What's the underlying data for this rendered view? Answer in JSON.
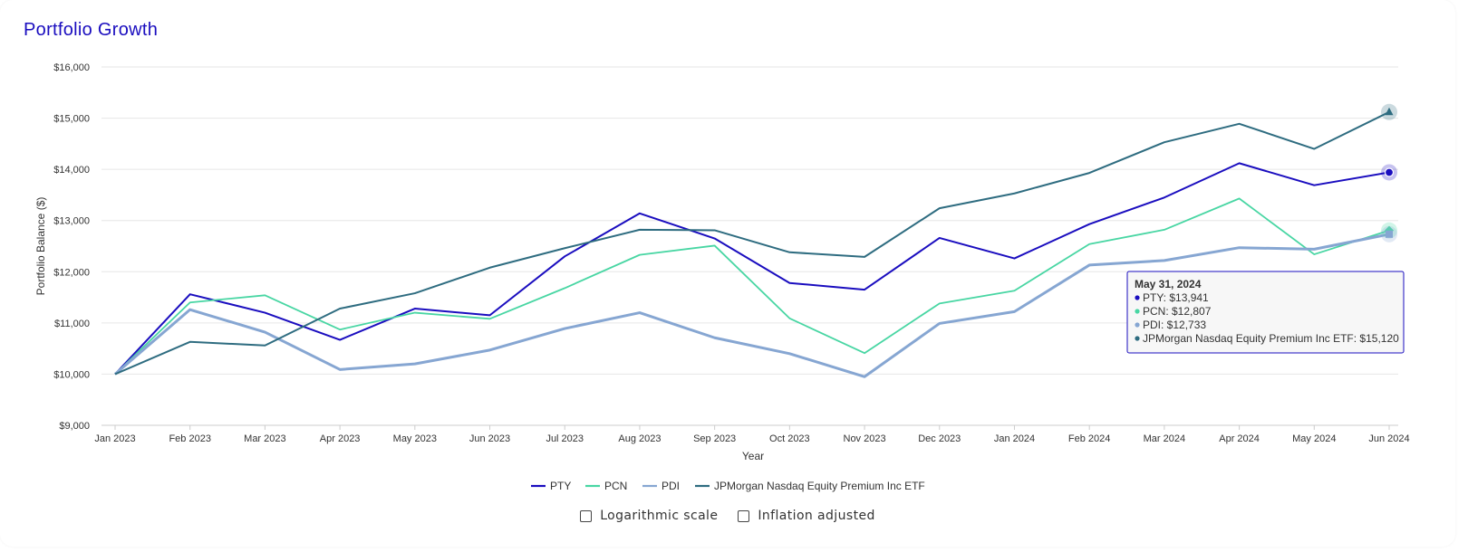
{
  "title": "Portfolio Growth",
  "options": {
    "log_label": "Logarithmic scale",
    "inflation_label": "Inflation adjusted"
  },
  "chart_data": {
    "type": "line",
    "title": "Portfolio Growth",
    "xlabel": "Year",
    "ylabel": "Portfolio Balance ($)",
    "ylim": [
      9000,
      16000
    ],
    "yticks": [
      9000,
      10000,
      11000,
      12000,
      13000,
      14000,
      15000,
      16000
    ],
    "ytick_labels": [
      "$9,000",
      "$10,000",
      "$11,000",
      "$12,000",
      "$13,000",
      "$14,000",
      "$15,000",
      "$16,000"
    ],
    "grid": true,
    "legend_position": "bottom",
    "categories": [
      "Jan 2023",
      "Feb 2023",
      "Mar 2023",
      "Apr 2023",
      "May 2023",
      "Jun 2023",
      "Jul 2023",
      "Aug 2023",
      "Sep 2023",
      "Oct 2023",
      "Nov 2023",
      "Dec 2023",
      "Jan 2024",
      "Feb 2024",
      "Mar 2024",
      "Apr 2024",
      "May 2024",
      "Jun 2024"
    ],
    "series": [
      {
        "name": "PTY",
        "color": "#1a0dbf",
        "values": [
          10000,
          11560,
          11200,
          10670,
          11280,
          11150,
          12300,
          13140,
          12650,
          11780,
          11650,
          12660,
          12260,
          12930,
          13450,
          14120,
          13690,
          13941
        ]
      },
      {
        "name": "PCN",
        "color": "#48d6a3",
        "values": [
          10000,
          11400,
          11540,
          10870,
          11200,
          11080,
          11680,
          12330,
          12510,
          11090,
          10410,
          11380,
          11630,
          12540,
          12820,
          13430,
          12340,
          12807
        ]
      },
      {
        "name": "PDI",
        "color": "#86a6d2",
        "values": [
          10000,
          11260,
          10820,
          10090,
          10200,
          10470,
          10890,
          11200,
          10710,
          10400,
          9950,
          10990,
          11220,
          12130,
          12220,
          12470,
          12440,
          12733
        ]
      },
      {
        "name": "JPMorgan Nasdaq Equity Premium Inc ETF",
        "color": "#2e6c80",
        "values": [
          10000,
          10630,
          10560,
          11280,
          11580,
          12080,
          12460,
          12820,
          12810,
          12380,
          12290,
          13240,
          13530,
          13930,
          14530,
          14890,
          14400,
          15120
        ]
      }
    ],
    "tooltip": {
      "date": "May 31, 2024",
      "lines": [
        "PTY: $13,941",
        "PCN: $12,807",
        "PDI: $12,733",
        "JPMorgan Nasdaq Equity Premium Inc ETF: $15,120"
      ]
    }
  }
}
